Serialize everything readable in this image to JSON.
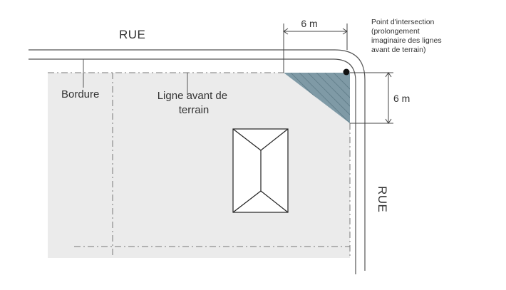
{
  "street_top": "RUE",
  "street_right": "RUE",
  "curb_label": "Bordure",
  "front_line_label": [
    "Ligne avant de",
    "terrain"
  ],
  "intersection_note": [
    "Point d'intersection",
    "(prolongement",
    "imaginaire des lignes",
    "avant de terrain)"
  ],
  "dimension_horizontal": "6 m",
  "dimension_vertical": "6 m",
  "colors": {
    "lot_fill": "#ebebeb",
    "triangle_fill": "#7f9aa6",
    "line": "#555555"
  }
}
